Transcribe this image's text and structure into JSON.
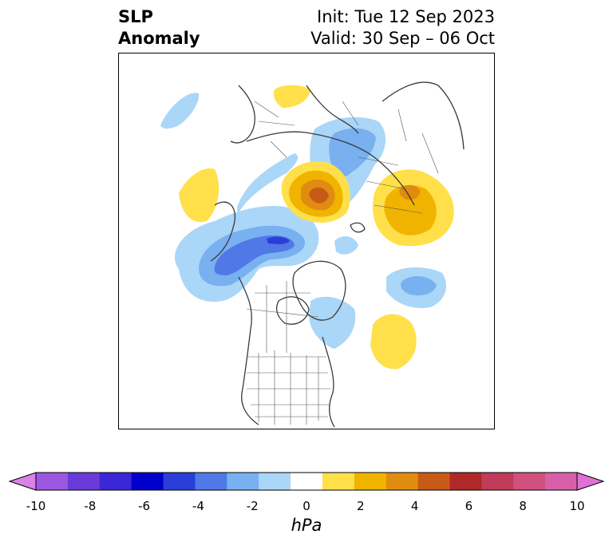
{
  "title": {
    "left_line1": "SLP",
    "left_line2": "Anomaly",
    "right_line1": "Init: Tue 12 Sep 2023",
    "right_line2": "Valid: 30 Sep – 06 Oct"
  },
  "colorbar": {
    "unit": "hPa",
    "ticks": [
      "-10",
      "-8",
      "-6",
      "-4",
      "-2",
      "0",
      "2",
      "4",
      "6",
      "8",
      "10"
    ],
    "colors": [
      "#d982e8",
      "#9b57e0",
      "#6a3ad8",
      "#3a28d6",
      "#0000cc",
      "#2a3ed8",
      "#5078e6",
      "#78b0f0",
      "#aad6f8",
      "#ffffff",
      "#ffe04a",
      "#f0b400",
      "#e08c10",
      "#c85a18",
      "#b02828",
      "#c03c58",
      "#d05080",
      "#d860a8",
      "#e070d8"
    ]
  },
  "map": {
    "region": "Northern Hemisphere polar view",
    "positive_color_light": "#ffe04a",
    "positive_color_mid": "#f0b400",
    "positive_color_strong": "#e08c10",
    "positive_color_max": "#c85a18",
    "negative_color_light": "#aad6f8",
    "negative_color_mid": "#78b0f0",
    "negative_color_strong": "#5078e6",
    "negative_color_max": "#2a3ed8"
  }
}
